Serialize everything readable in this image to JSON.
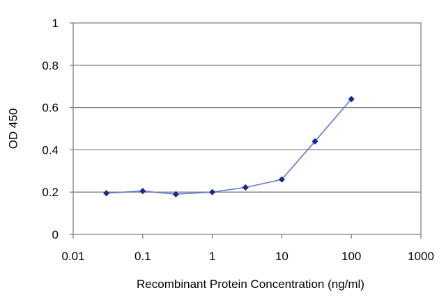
{
  "chart_data": {
    "type": "line",
    "xlabel": "Recombinant Protein Concentration (ng/ml)",
    "ylabel": "OD 450",
    "x_scale": "log",
    "xlim": [
      0.01,
      1000
    ],
    "ylim": [
      0,
      1
    ],
    "x_ticks": [
      0.01,
      0.1,
      1,
      10,
      100,
      1000
    ],
    "x_tick_labels": [
      "0.01",
      "0.1",
      "1",
      "10",
      "100",
      "1000"
    ],
    "y_ticks": [
      0,
      0.2,
      0.4,
      0.6,
      0.8,
      1
    ],
    "y_tick_labels": [
      "0",
      "0.2",
      "0.4",
      "0.6",
      "0.8",
      "1"
    ],
    "grid": "horizontal",
    "legend": "none",
    "series": [
      {
        "color": "#1a2a8c",
        "line_color": "#6677cc",
        "x": [
          0.03,
          0.1,
          0.3,
          1,
          3,
          10,
          30,
          100
        ],
        "y": [
          0.195,
          0.205,
          0.19,
          0.2,
          0.222,
          0.26,
          0.44,
          0.64
        ]
      }
    ]
  }
}
